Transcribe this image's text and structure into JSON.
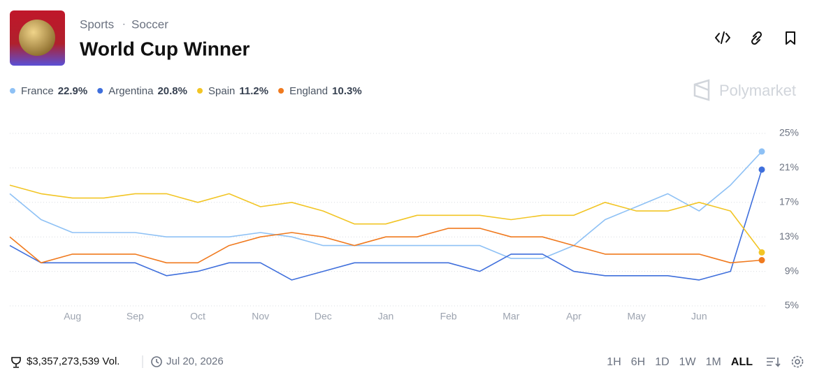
{
  "header": {
    "category": "Sports",
    "subcategory": "Soccer",
    "title": "World Cup Winner",
    "watermark": "Polymarket"
  },
  "chart_data": {
    "type": "line",
    "categories": [
      null,
      null,
      "Aug",
      null,
      "Sep",
      null,
      "Oct",
      null,
      "Nov",
      null,
      "Dec",
      null,
      "Jan",
      null,
      "Feb",
      null,
      "Mar",
      null,
      "Apr",
      null,
      "May",
      null,
      "Jun",
      null,
      null
    ],
    "series": [
      {
        "name": "France",
        "color": "#8ec1f5",
        "current": {
          "value": 22.9,
          "label": "22.9%"
        },
        "values": [
          18,
          15,
          13.5,
          13.5,
          13.5,
          13,
          13,
          13,
          13.5,
          13,
          12,
          12,
          12,
          12,
          12,
          12,
          10.5,
          10.5,
          12,
          15,
          16.5,
          18,
          16,
          19,
          22.9
        ]
      },
      {
        "name": "Argentina",
        "color": "#3f6fdc",
        "current": {
          "value": 20.8,
          "label": "20.8%"
        },
        "values": [
          12,
          10,
          10,
          10,
          10,
          8.5,
          9,
          10,
          10,
          8,
          9,
          10,
          10,
          10,
          10,
          9,
          11,
          11,
          9,
          8.5,
          8.5,
          8.5,
          8,
          9,
          20.8
        ]
      },
      {
        "name": "Spain",
        "color": "#f2c525",
        "current": {
          "value": 11.2,
          "label": "11.2%"
        },
        "values": [
          19,
          18,
          17.5,
          17.5,
          18,
          18,
          17,
          18,
          16.5,
          17,
          16,
          14.5,
          14.5,
          15.5,
          15.5,
          15.5,
          15,
          15.5,
          15.5,
          17,
          16,
          16,
          17,
          16,
          11.2
        ]
      },
      {
        "name": "England",
        "color": "#f07a1f",
        "current": {
          "value": 10.3,
          "label": "10.3%"
        },
        "values": [
          13,
          10,
          11,
          11,
          11,
          10,
          10,
          12,
          13,
          13.5,
          13,
          12,
          13,
          13,
          14,
          14,
          13,
          13,
          12,
          11,
          11,
          11,
          11,
          10,
          10.3
        ]
      }
    ],
    "ylim": [
      5,
      25
    ],
    "yticks": [
      {
        "value": 5,
        "label": "5%"
      },
      {
        "value": 9,
        "label": "9%"
      },
      {
        "value": 13,
        "label": "13%"
      },
      {
        "value": 17,
        "label": "17%"
      },
      {
        "value": 21,
        "label": "21%"
      },
      {
        "value": 25,
        "label": "25%"
      }
    ],
    "grid": true
  },
  "footer": {
    "volume": "$3,357,273,539 Vol.",
    "date": "Jul 20, 2026"
  },
  "controls": {
    "ranges": [
      "1H",
      "6H",
      "1D",
      "1W",
      "1M",
      "ALL"
    ],
    "selected": "ALL"
  }
}
